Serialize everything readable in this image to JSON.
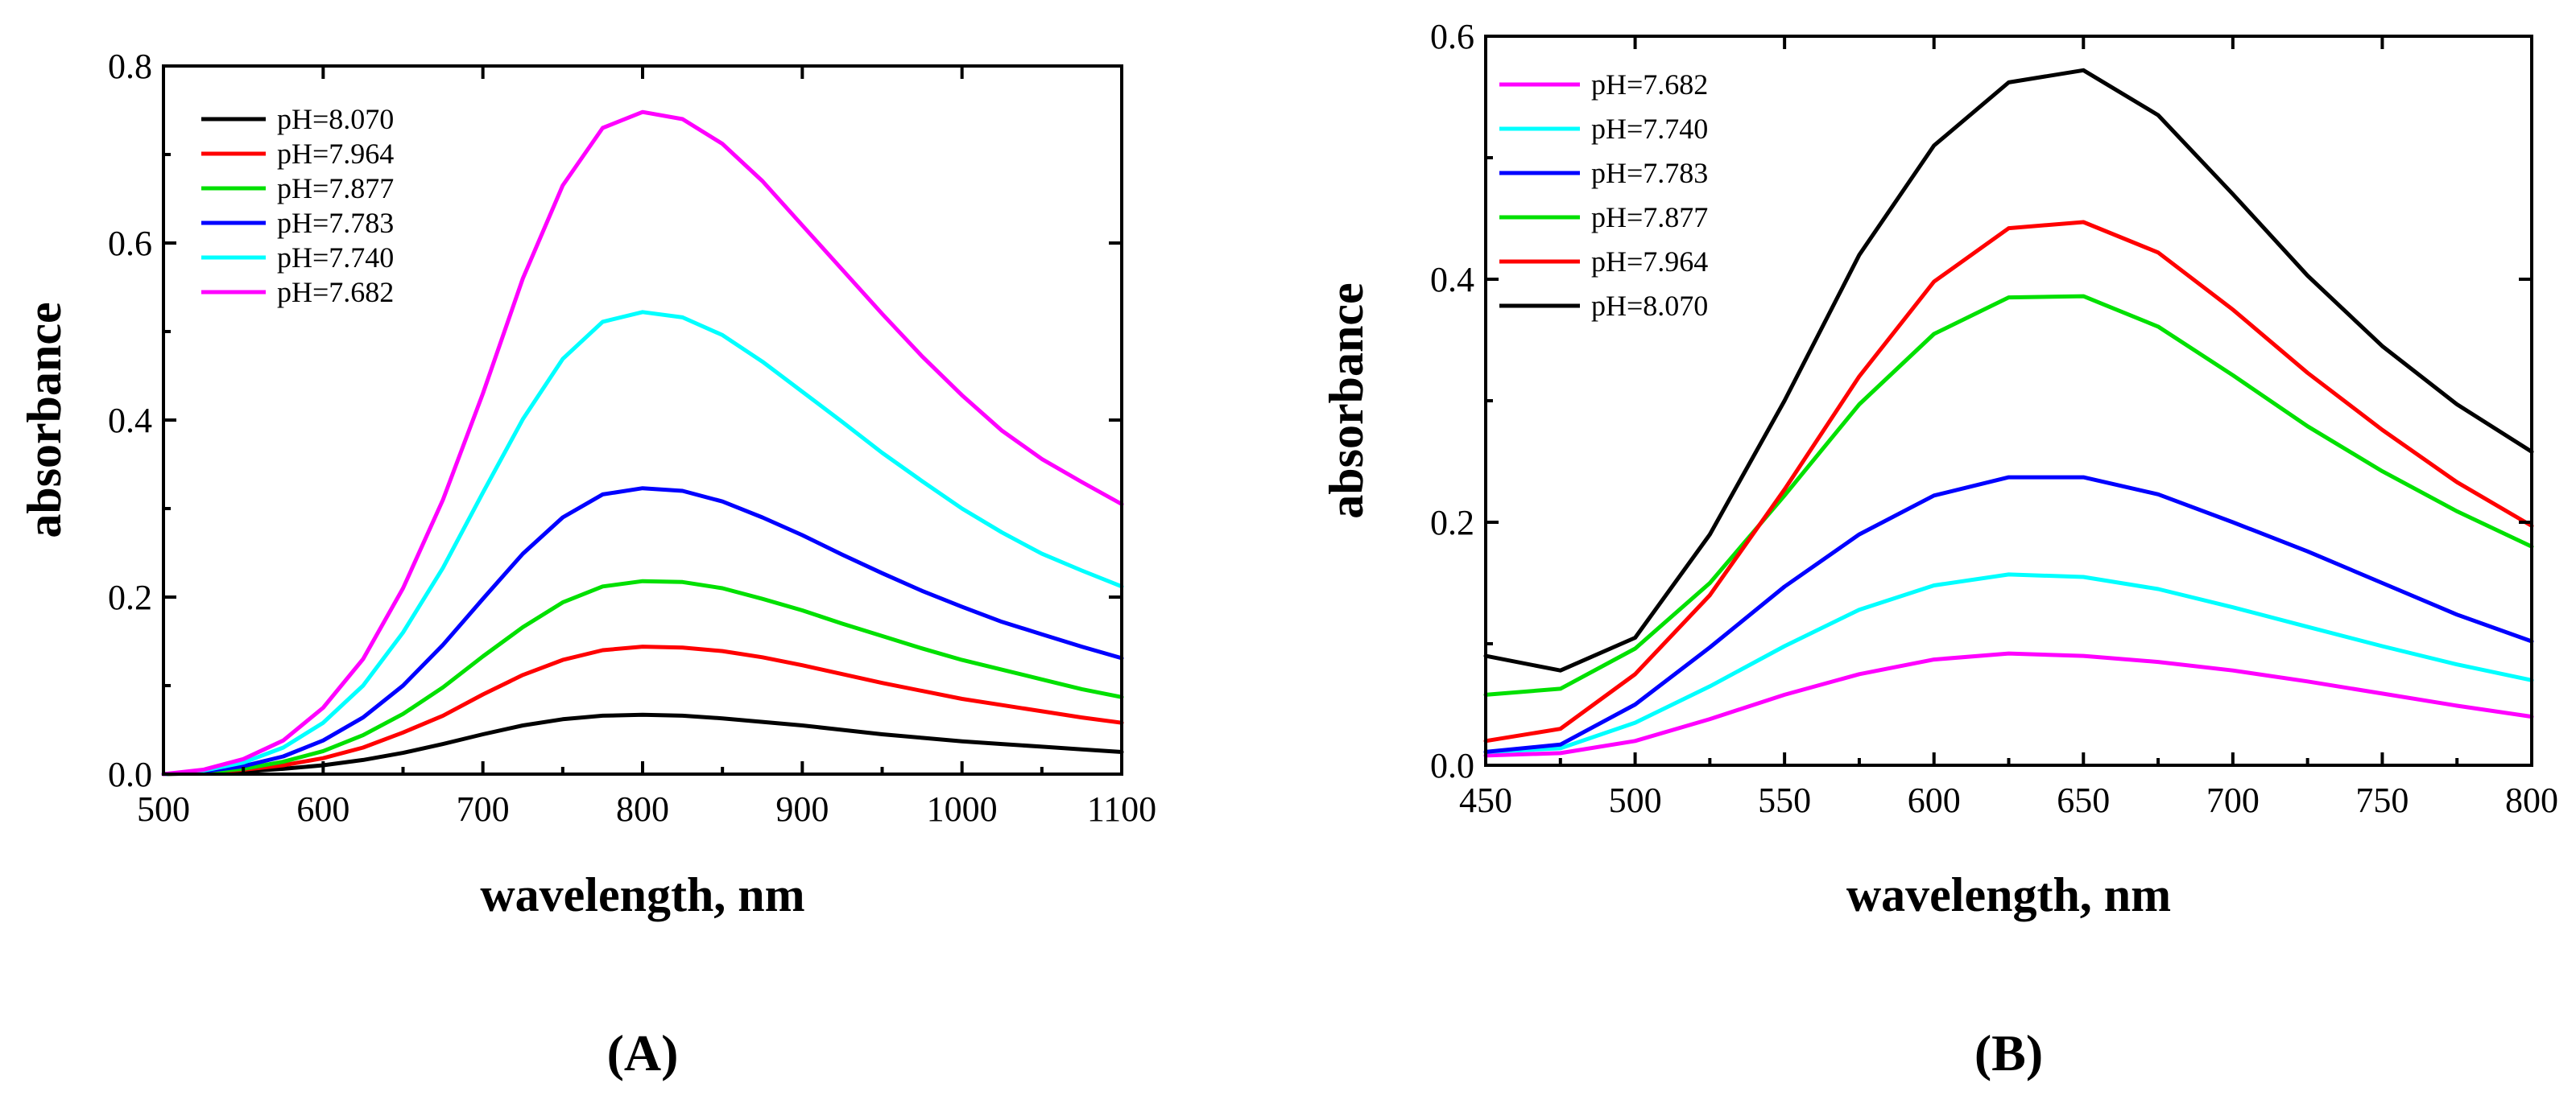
{
  "chart_data": [
    {
      "type": "line",
      "panel_label": "(A)",
      "xlabel": "wavelength, nm",
      "ylabel": "absorbance",
      "xlim": [
        500,
        1100
      ],
      "ylim": [
        0,
        0.8
      ],
      "xticks": [
        500,
        600,
        700,
        800,
        900,
        1000,
        1100
      ],
      "xtick_labels": [
        "500",
        "600",
        "700",
        "800",
        "900",
        "1000",
        "1100"
      ],
      "yticks": [
        0,
        0.2,
        0.4,
        0.6,
        0.8
      ],
      "ytick_labels": [
        "0.0",
        "0.2",
        "0.4",
        "0.6",
        "0.8"
      ],
      "legend_position": "top-left",
      "x": [
        500,
        525,
        550,
        575,
        600,
        625,
        650,
        675,
        700,
        725,
        750,
        775,
        800,
        825,
        850,
        875,
        900,
        925,
        950,
        975,
        1000,
        1025,
        1050,
        1075,
        1100
      ],
      "series": [
        {
          "name": "pH=8.070",
          "color": "#000000",
          "values": [
            0.0,
            0.001,
            0.003,
            0.006,
            0.01,
            0.016,
            0.024,
            0.034,
            0.045,
            0.055,
            0.062,
            0.066,
            0.067,
            0.066,
            0.063,
            0.059,
            0.055,
            0.05,
            0.045,
            0.041,
            0.037,
            0.034,
            0.031,
            0.028,
            0.025
          ]
        },
        {
          "name": "pH=7.964",
          "color": "#ff0000",
          "values": [
            0.0,
            0.002,
            0.005,
            0.01,
            0.018,
            0.03,
            0.047,
            0.066,
            0.09,
            0.112,
            0.129,
            0.14,
            0.144,
            0.143,
            0.139,
            0.132,
            0.123,
            0.113,
            0.103,
            0.094,
            0.085,
            0.078,
            0.071,
            0.064,
            0.058
          ]
        },
        {
          "name": "pH=7.877",
          "color": "#00e000",
          "values": [
            0.0,
            0.002,
            0.006,
            0.014,
            0.026,
            0.044,
            0.068,
            0.098,
            0.133,
            0.166,
            0.194,
            0.212,
            0.218,
            0.217,
            0.21,
            0.198,
            0.185,
            0.17,
            0.156,
            0.142,
            0.129,
            0.118,
            0.107,
            0.096,
            0.087
          ]
        },
        {
          "name": "pH=7.783",
          "color": "#0000ff",
          "values": [
            0.0,
            0.003,
            0.009,
            0.02,
            0.038,
            0.064,
            0.1,
            0.146,
            0.198,
            0.249,
            0.29,
            0.316,
            0.323,
            0.32,
            0.308,
            0.29,
            0.27,
            0.248,
            0.227,
            0.207,
            0.189,
            0.172,
            0.158,
            0.144,
            0.131
          ]
        },
        {
          "name": "pH=7.740",
          "color": "#00ffff",
          "values": [
            0.0,
            0.004,
            0.013,
            0.03,
            0.058,
            0.1,
            0.16,
            0.233,
            0.318,
            0.401,
            0.469,
            0.511,
            0.522,
            0.516,
            0.496,
            0.466,
            0.432,
            0.398,
            0.363,
            0.331,
            0.3,
            0.273,
            0.249,
            0.23,
            0.212
          ]
        },
        {
          "name": "pH=7.682",
          "color": "#ff00ff",
          "values": [
            0.0,
            0.005,
            0.017,
            0.038,
            0.075,
            0.13,
            0.21,
            0.31,
            0.43,
            0.56,
            0.665,
            0.73,
            0.748,
            0.74,
            0.712,
            0.67,
            0.62,
            0.57,
            0.52,
            0.472,
            0.428,
            0.388,
            0.356,
            0.33,
            0.305
          ]
        }
      ]
    },
    {
      "type": "line",
      "panel_label": "(B)",
      "xlabel": "wavelength, nm",
      "ylabel": "absorbance",
      "xlim": [
        450,
        800
      ],
      "ylim": [
        0,
        0.6
      ],
      "xticks": [
        450,
        500,
        550,
        600,
        650,
        700,
        750,
        800
      ],
      "xtick_labels": [
        "450",
        "500",
        "550",
        "600",
        "650",
        "700",
        "750",
        "800"
      ],
      "yticks": [
        0,
        0.2,
        0.4,
        0.6
      ],
      "ytick_labels": [
        "0.0",
        "0.2",
        "0.4",
        "0.6"
      ],
      "legend_position": "top-left",
      "x": [
        450,
        475,
        500,
        525,
        550,
        575,
        600,
        625,
        650,
        675,
        700,
        725,
        750,
        775,
        800
      ],
      "series": [
        {
          "name": "pH=7.682",
          "color": "#ff00ff",
          "values": [
            0.008,
            0.01,
            0.02,
            0.038,
            0.058,
            0.075,
            0.087,
            0.092,
            0.09,
            0.085,
            0.078,
            0.069,
            0.059,
            0.049,
            0.04
          ]
        },
        {
          "name": "pH=7.740",
          "color": "#00ffff",
          "values": [
            0.011,
            0.014,
            0.035,
            0.065,
            0.098,
            0.128,
            0.148,
            0.157,
            0.155,
            0.145,
            0.13,
            0.114,
            0.098,
            0.083,
            0.07
          ]
        },
        {
          "name": "pH=7.783",
          "color": "#0000ff",
          "values": [
            0.011,
            0.017,
            0.05,
            0.097,
            0.147,
            0.19,
            0.222,
            0.237,
            0.237,
            0.223,
            0.2,
            0.176,
            0.15,
            0.124,
            0.102
          ]
        },
        {
          "name": "pH=7.877",
          "color": "#00e000",
          "values": [
            0.058,
            0.063,
            0.096,
            0.15,
            0.222,
            0.297,
            0.355,
            0.385,
            0.386,
            0.361,
            0.321,
            0.279,
            0.242,
            0.209,
            0.18
          ]
        },
        {
          "name": "pH=7.964",
          "color": "#ff0000",
          "values": [
            0.02,
            0.03,
            0.075,
            0.14,
            0.227,
            0.32,
            0.398,
            0.442,
            0.447,
            0.422,
            0.375,
            0.323,
            0.276,
            0.233,
            0.197
          ]
        },
        {
          "name": "pH=8.070",
          "color": "#000000",
          "values": [
            0.09,
            0.078,
            0.105,
            0.19,
            0.3,
            0.42,
            0.51,
            0.562,
            0.572,
            0.535,
            0.47,
            0.403,
            0.345,
            0.297,
            0.258
          ]
        }
      ]
    }
  ]
}
